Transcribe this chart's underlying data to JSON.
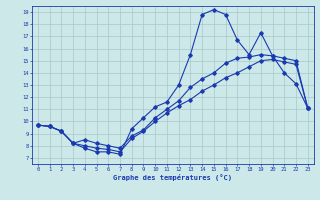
{
  "xlabel": "Graphe des températures (°C)",
  "bg_color": "#cce8e8",
  "line_color": "#1a3ab0",
  "grid_color": "#aac8c8",
  "xlim": [
    -0.5,
    23.5
  ],
  "ylim": [
    6.5,
    19.5
  ],
  "xticks": [
    0,
    1,
    2,
    3,
    4,
    5,
    6,
    7,
    8,
    9,
    10,
    11,
    12,
    13,
    14,
    15,
    16,
    17,
    18,
    19,
    20,
    21,
    22,
    23
  ],
  "yticks": [
    7,
    8,
    9,
    10,
    11,
    12,
    13,
    14,
    15,
    16,
    17,
    18,
    19
  ],
  "series1_x": [
    0,
    1,
    2,
    3,
    4,
    5,
    6,
    7,
    8,
    9,
    10,
    11,
    12,
    13,
    14,
    15,
    16,
    17,
    18,
    19,
    20,
    21,
    22,
    23
  ],
  "series1_y": [
    9.7,
    9.6,
    9.2,
    8.2,
    7.8,
    7.5,
    7.5,
    7.3,
    9.4,
    10.3,
    11.2,
    11.6,
    13.0,
    15.5,
    18.8,
    19.2,
    18.8,
    16.7,
    15.5,
    17.3,
    15.4,
    14.0,
    13.1,
    11.1
  ],
  "series2_x": [
    0,
    1,
    2,
    3,
    4,
    5,
    6,
    7,
    8,
    9,
    10,
    11,
    12,
    13,
    14,
    15,
    16,
    17,
    18,
    19,
    20,
    21,
    22,
    23
  ],
  "series2_y": [
    9.7,
    9.6,
    9.2,
    8.2,
    8.5,
    8.2,
    8.0,
    7.8,
    8.8,
    9.3,
    10.3,
    11.0,
    11.7,
    12.8,
    13.5,
    14.0,
    14.8,
    15.2,
    15.3,
    15.5,
    15.4,
    15.2,
    15.0,
    11.1
  ],
  "series3_x": [
    0,
    1,
    2,
    3,
    4,
    5,
    6,
    7,
    8,
    9,
    10,
    11,
    12,
    13,
    14,
    15,
    16,
    17,
    18,
    19,
    20,
    21,
    22,
    23
  ],
  "series3_y": [
    9.7,
    9.6,
    9.2,
    8.2,
    8.0,
    7.8,
    7.7,
    7.5,
    8.6,
    9.2,
    10.0,
    10.7,
    11.3,
    11.8,
    12.5,
    13.0,
    13.6,
    14.0,
    14.5,
    15.0,
    15.1,
    14.9,
    14.7,
    11.1
  ]
}
